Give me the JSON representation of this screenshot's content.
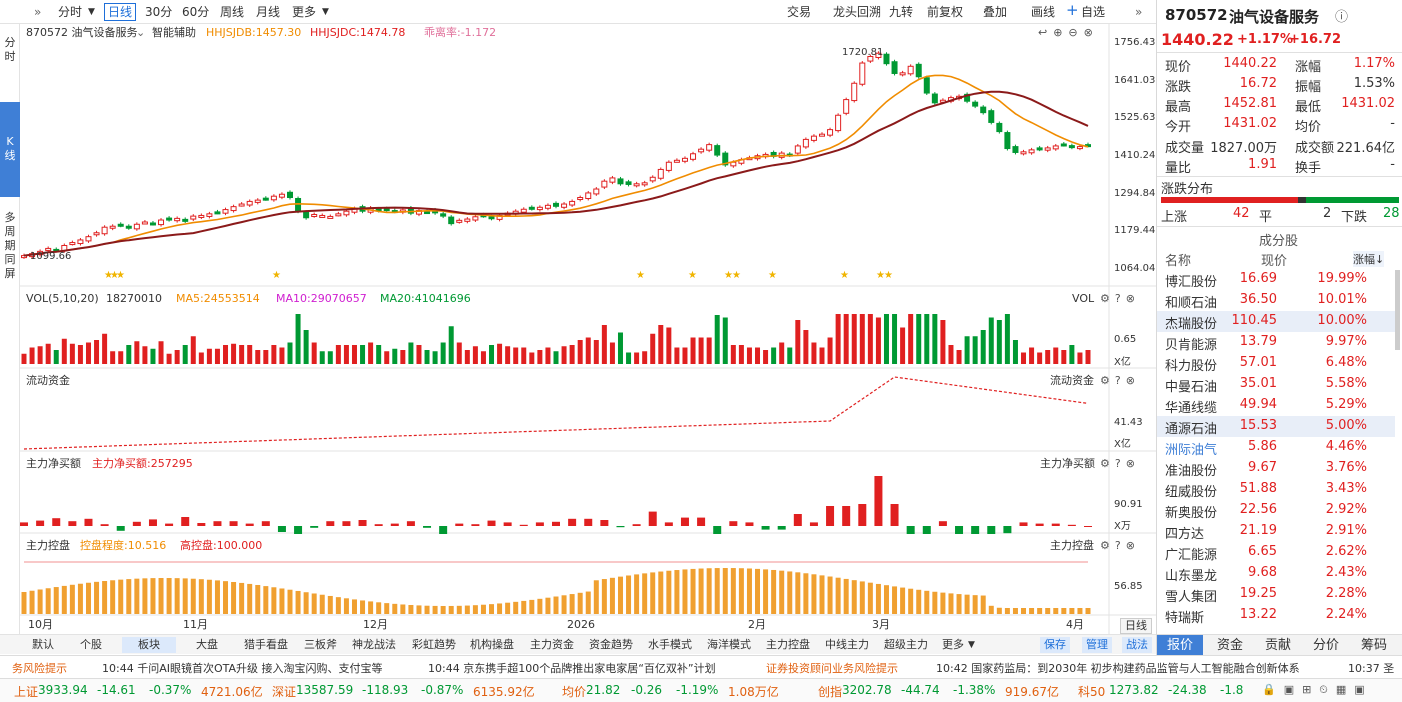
{
  "toolbar": {
    "left": [
      "分时",
      "日线",
      "30分",
      "60分",
      "周线",
      "月线",
      "更多"
    ],
    "right": [
      "交易",
      "龙头回溯",
      "九转",
      "前复权",
      "叠加",
      "画线",
      "自选"
    ]
  },
  "leftbar": {
    "items": [
      "分",
      "时",
      "K",
      "线",
      "多",
      "周",
      "期",
      "同",
      "屏"
    ]
  },
  "chart": {
    "title": "870572 油气设备服务",
    "assist": "智能辅助",
    "hhjsjdb": "HHJSJDB:1457.30",
    "hhjsjdc": "HHJSJDC:1474.78",
    "deviate": "乖离率:-1.172",
    "y_ticks": [
      "1756.43",
      "1641.03",
      "1525.63",
      "1410.24",
      "1294.84",
      "1179.44",
      "1064.04"
    ],
    "max_label": "1720.81",
    "min_label": "1099.66",
    "vol_title": "VOL(5,10,20)",
    "vol_val": "18270010",
    "ma5": "MA5:24553514",
    "ma10": "MA10:29070657",
    "ma20": "MA20:41041696",
    "vol_tick": "0.65",
    "vol_unit": "X亿",
    "vol_name": "VOL",
    "flow_title": "流动资金",
    "flow_tick": "41.43",
    "flow_unit": "X亿",
    "net_title": "主力净买额",
    "net_val": "主力净买额:257295",
    "net_tick": "90.91",
    "net_unit": "X万",
    "ctrl_title": "主力控盘",
    "ctrl_deg": "控盘程度:10.516",
    "ctrl_high": "高控盘:100.000",
    "ctrl_tick": "56.85",
    "x_labels": [
      "10月",
      "11月",
      "12月",
      "2026",
      "2月",
      "3月",
      "4月"
    ],
    "period": "日线"
  },
  "candles": [
    1102,
    1108,
    1115,
    1124,
    1120,
    1133,
    1142,
    1150,
    1160,
    1172,
    1189,
    1192,
    1195,
    1187,
    1198,
    1205,
    1200,
    1211,
    1212,
    1216,
    1208,
    1223,
    1225,
    1230,
    1235,
    1243,
    1252,
    1260,
    1268,
    1272,
    1276,
    1284,
    1290,
    1280,
    1238,
    1218,
    1228,
    1225,
    1222,
    1230,
    1238,
    1246,
    1238,
    1248,
    1240,
    1243,
    1238,
    1242,
    1232,
    1240,
    1236,
    1233,
    1223,
    1200,
    1210,
    1214,
    1221,
    1224,
    1216,
    1225,
    1232,
    1238,
    1244,
    1246,
    1250,
    1256,
    1253,
    1260,
    1268,
    1280,
    1294,
    1306,
    1330,
    1340,
    1322,
    1320,
    1322,
    1325,
    1342,
    1366,
    1388,
    1394,
    1400,
    1414,
    1428,
    1442,
    1410,
    1380,
    1388,
    1396,
    1402,
    1408,
    1412,
    1406,
    1416,
    1410,
    1438,
    1458,
    1468,
    1474,
    1488,
    1532,
    1580,
    1630,
    1692,
    1712,
    1722,
    1690,
    1660,
    1662,
    1682,
    1650,
    1600,
    1570,
    1578,
    1586,
    1590,
    1575,
    1560,
    1540,
    1510,
    1482,
    1430,
    1418,
    1420,
    1426,
    1428,
    1432,
    1438,
    1442,
    1434,
    1436,
    1440
  ],
  "volume_note": "volume bars derived from candles",
  "bottom_tabs": [
    "默认",
    "个股",
    "板块",
    "大盘",
    "猎手看盘",
    "三板斧",
    "神龙战法",
    "彩虹趋势",
    "机构操盘",
    "主力资金",
    "资金趋势",
    "水手模式",
    "海洋模式",
    "主力控盘",
    "中线主力",
    "超级主力",
    "更多",
    "保存",
    "管理",
    "战法"
  ],
  "quote": {
    "code": "870572",
    "name": "油气设备服务",
    "price": "1440.22",
    "pct": "+1.17%",
    "chg": "+16.72",
    "now_l": "现价",
    "now": "1440.22",
    "amp_l": "涨幅",
    "amp": "1.17%",
    "diff_l": "涨跌",
    "diff": "16.72",
    "swing_l": "振幅",
    "swing": "1.53%",
    "high_l": "最高",
    "high": "1452.81",
    "low_l": "最低",
    "low": "1431.02",
    "open_l": "今开",
    "open": "1431.02",
    "avg_l": "均价",
    "avg": "-",
    "vol_l": "成交量",
    "vol": "1827.00万",
    "amt_l": "成交额",
    "amt": "221.64亿",
    "ratio_l": "量比",
    "ratio": "1.91",
    "turn_l": "换手",
    "turn": "-",
    "dist_title": "涨跌分布",
    "up_l": "上涨",
    "up": "42",
    "flat_l": "平",
    "flat": "2",
    "down_l": "下跌",
    "down": "28",
    "comp_title": "成分股",
    "col_name": "名称",
    "col_price": "现价",
    "col_pct": "涨幅↓"
  },
  "stocks": [
    [
      "博汇股份",
      "16.69",
      "19.99%"
    ],
    [
      "和顺石油",
      "36.50",
      "10.01%"
    ],
    [
      "杰瑞股份",
      "110.45",
      "10.00%"
    ],
    [
      "贝肯能源",
      "13.79",
      "9.97%"
    ],
    [
      "科力股份",
      "57.01",
      "6.48%"
    ],
    [
      "中曼石油",
      "35.01",
      "5.58%"
    ],
    [
      "华通线缆",
      "49.94",
      "5.29%"
    ],
    [
      "通源石油",
      "15.53",
      "5.00%"
    ],
    [
      "洲际油气",
      "5.86",
      "4.46%"
    ],
    [
      "准油股份",
      "9.67",
      "3.76%"
    ],
    [
      "纽威股份",
      "51.88",
      "3.43%"
    ],
    [
      "新奥股份",
      "22.56",
      "2.92%"
    ],
    [
      "四方达",
      "21.19",
      "2.91%"
    ],
    [
      "广汇能源",
      "6.65",
      "2.62%"
    ],
    [
      "山东墨龙",
      "9.68",
      "2.43%"
    ],
    [
      "雪人集团",
      "19.25",
      "2.28%"
    ],
    [
      "特瑞斯",
      "13.22",
      "2.24%"
    ]
  ],
  "right_tabs": [
    "报价",
    "资金",
    "贡献",
    "分价",
    "筹码"
  ],
  "news": [
    "务风险提示",
    "10:44 千问AI眼镜首次OTA升级  接入淘宝闪购、支付宝等",
    "10:44 京东携手超100个品牌推出家电家居“百亿双补”计划",
    "证券投资顾问业务风险提示",
    "10:42 国家药监局：到2030年 初步构建药品监管与人工智能融合创新体系",
    "10:37 圣"
  ],
  "status": [
    [
      "上证",
      "3933.94",
      "-14.61",
      "-0.37%",
      "4721.06亿"
    ],
    [
      "深证",
      "13587.59",
      "-118.93",
      "-0.87%",
      "6135.92亿"
    ],
    [
      "均价",
      "21.82",
      "-0.26",
      "-1.19%",
      "1.08万亿"
    ],
    [
      "创指",
      "3202.78",
      "-44.74",
      "-1.38%",
      "919.67亿"
    ],
    [
      "科50",
      "1273.82",
      "-24.38",
      "-1.8"
    ]
  ],
  "colors": {
    "up": "#e02020",
    "down": "#009933",
    "accent": "#1e6fd9",
    "ma_orange": "#f08c00",
    "ma_dark": "#8b1a1a",
    "ctrl": "#f0a030"
  }
}
